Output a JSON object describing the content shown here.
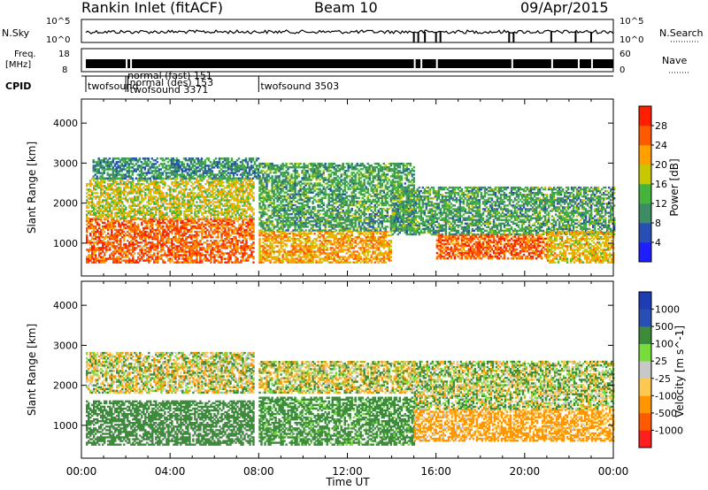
{
  "header": {
    "station": "Rankin Inlet (fitACF)",
    "beam": "Beam 10",
    "date": "09/Apr/2015"
  },
  "top_panels": {
    "nsky_label": "N.Sky",
    "nsky_ticks": [
      "10^5",
      "10^0"
    ],
    "nsearch_label": "N.Search",
    "nsearch_ticks": [
      "10^5",
      "10^0"
    ],
    "freq_label_line1": "Freq.",
    "freq_label_line2": "[MHz]",
    "freq_ticks": [
      "18",
      "8"
    ],
    "nave_label": "Nave",
    "nave_ticks": [
      "60",
      "0"
    ],
    "cpid_label": "CPID",
    "cpid_entries": [
      {
        "time": 0.2,
        "text": "twofsound"
      },
      {
        "time": 2.0,
        "text": "normal (fast) 151"
      },
      {
        "time": 2.1,
        "text": "normal (des) 153"
      },
      {
        "time": 2.1,
        "text": "twofsound 3371"
      },
      {
        "time": 8.0,
        "text": "twofsound 3503"
      }
    ]
  },
  "colors": {
    "power": [
      "#1e1eff",
      "#2850b4",
      "#3c8c64",
      "#46b43c",
      "#c8c800",
      "#ffa000",
      "#ff5a00",
      "#ff1e00"
    ],
    "velocity": [
      "#ff1e1e",
      "#ff5a00",
      "#ff9600",
      "#ffc850",
      "#c8c8c8",
      "#78dc3c",
      "#3c8c3c",
      "#2850b4",
      "#1e3cb4"
    ]
  },
  "chart_data": [
    {
      "type": "heatmap",
      "name": "Power",
      "xlabel": "",
      "ylabel": "Slant Range [km]",
      "xlim": [
        0,
        24
      ],
      "ylim": [
        180,
        4600
      ],
      "yticks": [
        1000,
        2000,
        3000,
        4000
      ],
      "colorbar": {
        "label": "Power [dB]",
        "range": [
          0,
          32
        ],
        "ticks": [
          4,
          8,
          12,
          16,
          20,
          24,
          28
        ]
      },
      "regions": [
        {
          "t0": 0.2,
          "t1": 7.8,
          "r0": 500,
          "r1": 1600,
          "value": 26
        },
        {
          "t0": 0.2,
          "t1": 7.8,
          "r0": 1600,
          "r1": 2600,
          "value": 18
        },
        {
          "t0": 0.5,
          "t1": 8.0,
          "r0": 2600,
          "r1": 3100,
          "value": 10
        },
        {
          "t0": 8.0,
          "t1": 14.0,
          "r0": 500,
          "r1": 1300,
          "value": 22
        },
        {
          "t0": 8.0,
          "t1": 15.0,
          "r0": 1300,
          "r1": 3000,
          "value": 12
        },
        {
          "t0": 16.0,
          "t1": 21.0,
          "r0": 600,
          "r1": 1200,
          "value": 26
        },
        {
          "t0": 14.0,
          "t1": 24.0,
          "r0": 1200,
          "r1": 2400,
          "value": 12
        },
        {
          "t0": 21.0,
          "t1": 24.0,
          "r0": 500,
          "r1": 1300,
          "value": 20
        }
      ]
    },
    {
      "type": "heatmap",
      "name": "Velocity",
      "xlabel": "Time UT",
      "ylabel": "Slant Range [km]",
      "xlim": [
        0,
        24
      ],
      "ylim": [
        180,
        4600
      ],
      "yticks": [
        1000,
        2000,
        3000,
        4000
      ],
      "xticks": [
        "00:00",
        "04:00",
        "08:00",
        "12:00",
        "16:00",
        "20:00",
        "00:00"
      ],
      "colorbar": {
        "label": "Velocity [m s^-1]",
        "range": [
          -1500,
          1500
        ],
        "ticks": [
          "1000",
          "500",
          "100",
          "25",
          "-25",
          "-100",
          "-500",
          "-1000"
        ]
      },
      "regions": [
        {
          "t0": 0.2,
          "t1": 7.8,
          "r0": 1800,
          "r1": 2800,
          "value": 0
        },
        {
          "t0": 0.2,
          "t1": 7.8,
          "r0": 500,
          "r1": 1600,
          "value": 300
        },
        {
          "t0": 8.0,
          "t1": 15.0,
          "r0": 1800,
          "r1": 2600,
          "value": 0
        },
        {
          "t0": 8.0,
          "t1": 15.0,
          "r0": 500,
          "r1": 1700,
          "value": 250
        },
        {
          "t0": 15.0,
          "t1": 24.0,
          "r0": 600,
          "r1": 1400,
          "value": -200
        },
        {
          "t0": 15.0,
          "t1": 24.0,
          "r0": 1400,
          "r1": 2600,
          "value": 50
        }
      ]
    }
  ]
}
